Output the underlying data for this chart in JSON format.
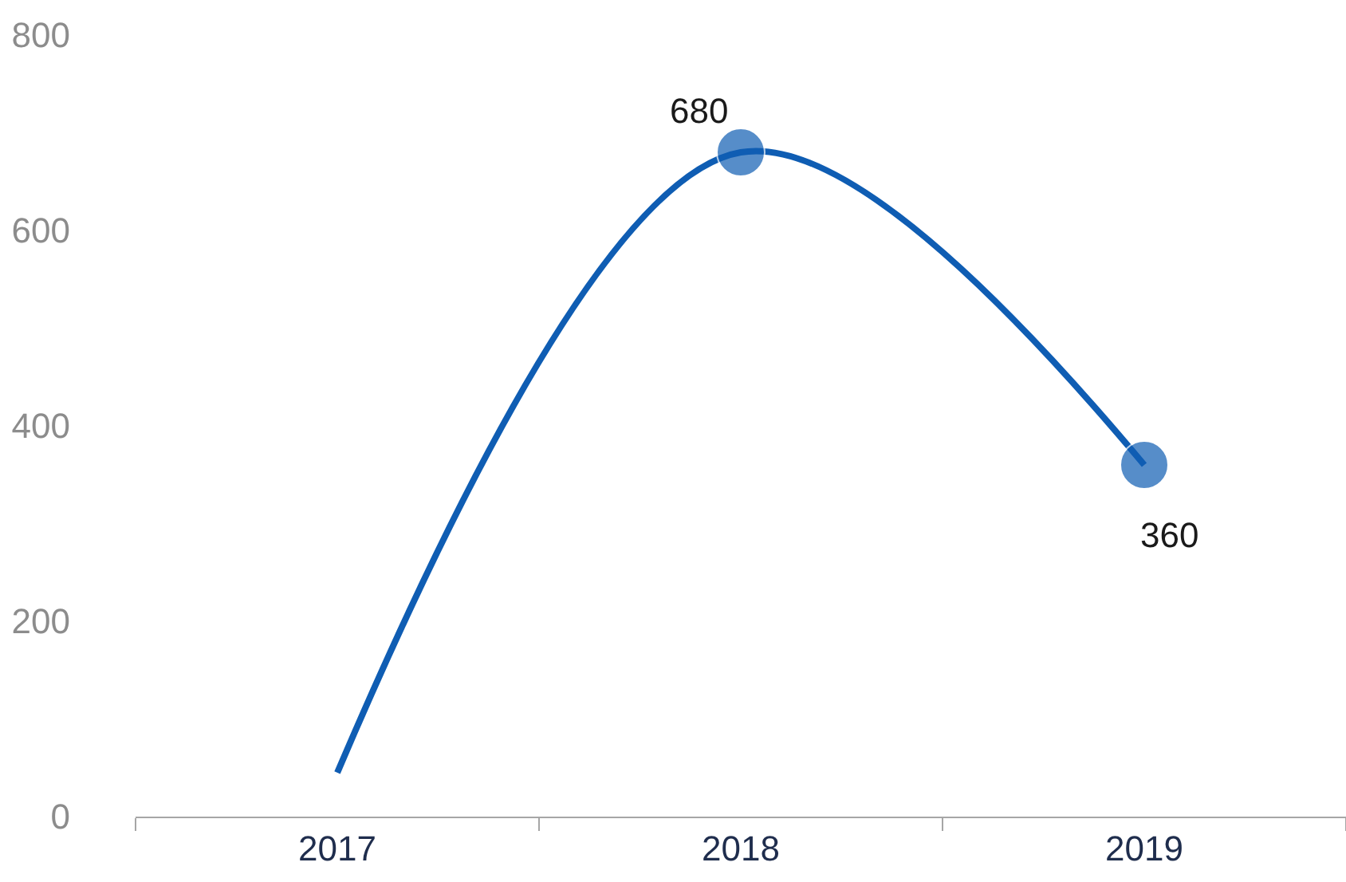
{
  "chart_data": {
    "type": "line",
    "categories": [
      "2017",
      "2018",
      "2019"
    ],
    "series": [
      {
        "color": "#0f5db3",
        "values": [
          45,
          680,
          360
        ],
        "value_labels": [
          null,
          "680",
          "360"
        ]
      }
    ],
    "ylim": [
      0,
      800
    ],
    "yticks": [
      0,
      200,
      400,
      600,
      800
    ],
    "grid": false,
    "legend": false,
    "marker": "circle",
    "line_style": "solid"
  }
}
